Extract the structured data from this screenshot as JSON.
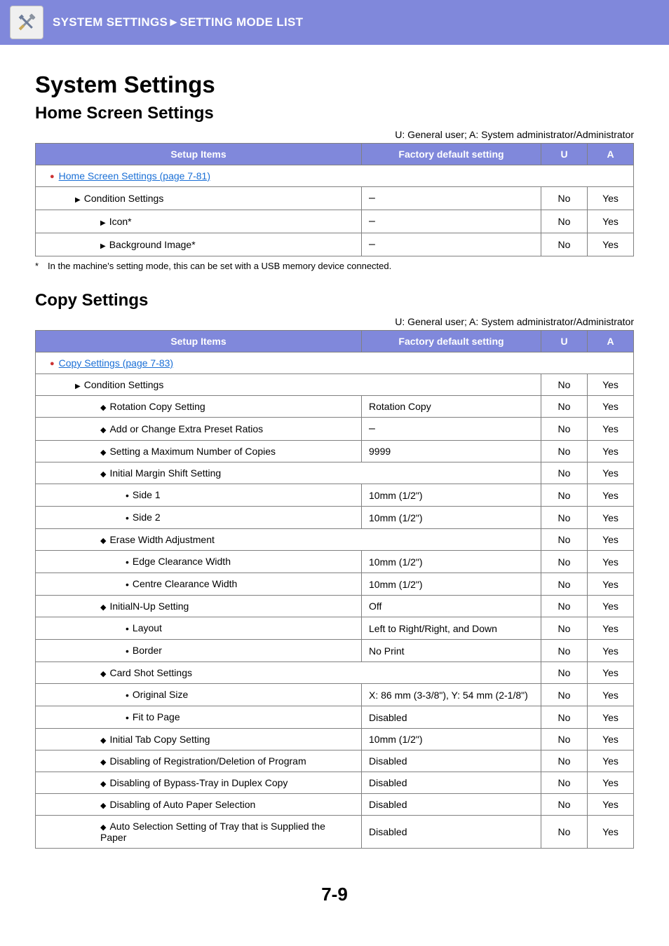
{
  "banner": {
    "breadcrumb": "SYSTEM SETTINGS►SETTING MODE LIST"
  },
  "h1": "System Settings",
  "section1": {
    "title": "Home Screen Settings",
    "legend": "U: General user; A: System administrator/Administrator",
    "headers": {
      "setup": "Setup Items",
      "factory": "Factory default setting",
      "u": "U",
      "a": "A"
    },
    "link_row": "Home Screen Settings (page 7-81)",
    "rows": [
      {
        "label": "Condition Settings",
        "factory": "–",
        "u": "No",
        "a": "Yes",
        "level": "l2",
        "marker": "arrow"
      },
      {
        "label": "Icon*",
        "factory": "–",
        "u": "No",
        "a": "Yes",
        "level": "l3",
        "marker": "arrow"
      },
      {
        "label": "Background Image*",
        "factory": "–",
        "u": "No",
        "a": "Yes",
        "level": "l3",
        "marker": "arrow"
      }
    ],
    "footnote": "In the machine's setting mode, this can be set with a USB memory device connected."
  },
  "section2": {
    "title": "Copy Settings",
    "legend": "U: General user; A: System administrator/Administrator",
    "headers": {
      "setup": "Setup Items",
      "factory": "Factory default setting",
      "u": "U",
      "a": "A"
    },
    "link_row": "Copy Settings (page 7-83)",
    "rows": [
      {
        "label": "Condition Settings",
        "span": true,
        "u": "No",
        "a": "Yes",
        "level": "l2",
        "marker": "arrow"
      },
      {
        "label": "Rotation Copy Setting",
        "factory": "Rotation Copy",
        "u": "No",
        "a": "Yes",
        "level": "l3",
        "marker": "diamond"
      },
      {
        "label": "Add or Change Extra Preset Ratios",
        "factory": "–",
        "u": "No",
        "a": "Yes",
        "level": "l3",
        "marker": "diamond"
      },
      {
        "label": "Setting a Maximum Number of Copies",
        "factory": "9999",
        "u": "No",
        "a": "Yes",
        "level": "l3",
        "marker": "diamond"
      },
      {
        "label": "Initial Margin Shift Setting",
        "span": true,
        "u": "No",
        "a": "Yes",
        "level": "l3",
        "marker": "diamond"
      },
      {
        "label": "Side 1",
        "factory": "10mm (1/2\")",
        "u": "No",
        "a": "Yes",
        "level": "l4",
        "marker": "dot"
      },
      {
        "label": "Side 2",
        "factory": "10mm (1/2\")",
        "u": "No",
        "a": "Yes",
        "level": "l4",
        "marker": "dot"
      },
      {
        "label": "Erase Width Adjustment",
        "span": true,
        "u": "No",
        "a": "Yes",
        "level": "l3",
        "marker": "diamond"
      },
      {
        "label": "Edge Clearance Width",
        "factory": "10mm (1/2\")",
        "u": "No",
        "a": "Yes",
        "level": "l4",
        "marker": "dot"
      },
      {
        "label": "Centre Clearance Width",
        "factory": "10mm (1/2\")",
        "u": "No",
        "a": "Yes",
        "level": "l4",
        "marker": "dot"
      },
      {
        "label": "InitialN-Up Setting",
        "factory": "Off",
        "u": "No",
        "a": "Yes",
        "level": "l3",
        "marker": "diamond"
      },
      {
        "label": "Layout",
        "factory": "Left to Right/Right, and Down",
        "u": "No",
        "a": "Yes",
        "level": "l4",
        "marker": "dot"
      },
      {
        "label": "Border",
        "factory": "No Print",
        "u": "No",
        "a": "Yes",
        "level": "l4",
        "marker": "dot"
      },
      {
        "label": "Card Shot Settings",
        "span": true,
        "u": "No",
        "a": "Yes",
        "level": "l3",
        "marker": "diamond"
      },
      {
        "label": "Original Size",
        "factory": "X: 86 mm (3-3/8\"), Y: 54 mm (2-1/8\")",
        "u": "No",
        "a": "Yes",
        "level": "l4",
        "marker": "dot"
      },
      {
        "label": "Fit to Page",
        "factory": "Disabled",
        "u": "No",
        "a": "Yes",
        "level": "l4",
        "marker": "dot"
      },
      {
        "label": "Initial Tab Copy Setting",
        "factory": "10mm (1/2\")",
        "u": "No",
        "a": "Yes",
        "level": "l3",
        "marker": "diamond"
      },
      {
        "label": "Disabling of Registration/Deletion of Program",
        "factory": "Disabled",
        "u": "No",
        "a": "Yes",
        "level": "l3",
        "marker": "diamond"
      },
      {
        "label": "Disabling of Bypass-Tray in Duplex Copy",
        "factory": "Disabled",
        "u": "No",
        "a": "Yes",
        "level": "l3",
        "marker": "diamond"
      },
      {
        "label": "Disabling of Auto Paper Selection",
        "factory": "Disabled",
        "u": "No",
        "a": "Yes",
        "level": "l3",
        "marker": "diamond"
      },
      {
        "label": "Auto Selection Setting of Tray that is Supplied the Paper",
        "factory": "Disabled",
        "u": "No",
        "a": "Yes",
        "level": "l3",
        "marker": "diamond"
      }
    ]
  },
  "page_number": "7-9"
}
